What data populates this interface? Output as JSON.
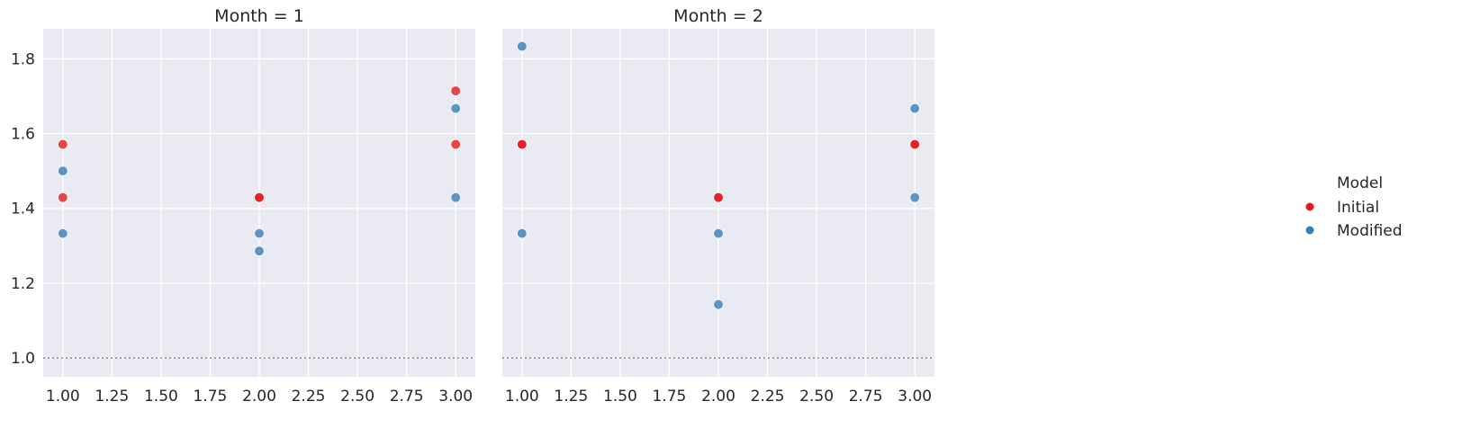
{
  "chart_data": {
    "type": "scatter",
    "colors": {
      "Initial": "#e41a1c",
      "Modified": "#377eb8"
    },
    "axes_background": "#eaeaf2",
    "grid": true,
    "sharey": true,
    "xlim": [
      0.9,
      3.1
    ],
    "ylim": [
      0.95,
      1.88
    ],
    "xticks": [
      "1.00",
      "1.25",
      "1.50",
      "1.75",
      "2.00",
      "2.25",
      "2.50",
      "2.75",
      "3.00"
    ],
    "yticks": [
      "1.0",
      "1.2",
      "1.4",
      "1.6",
      "1.8"
    ],
    "reference_line_y": 1.0,
    "legend": {
      "title": "Model",
      "placement": "right",
      "entries": [
        "Initial",
        "Modified"
      ]
    },
    "panels": [
      {
        "title": "Month = 1",
        "points": [
          {
            "x": 1,
            "y": 1.571,
            "series": "Initial"
          },
          {
            "x": 1,
            "y": 1.429,
            "series": "Initial"
          },
          {
            "x": 1,
            "y": 1.5,
            "series": "Modified"
          },
          {
            "x": 1,
            "y": 1.333,
            "series": "Modified"
          },
          {
            "x": 2,
            "y": 1.429,
            "series": "Initial"
          },
          {
            "x": 2,
            "y": 1.429,
            "series": "Initial"
          },
          {
            "x": 2,
            "y": 1.333,
            "series": "Modified"
          },
          {
            "x": 2,
            "y": 1.286,
            "series": "Modified"
          },
          {
            "x": 3,
            "y": 1.714,
            "series": "Initial"
          },
          {
            "x": 3,
            "y": 1.571,
            "series": "Initial"
          },
          {
            "x": 3,
            "y": 1.667,
            "series": "Modified"
          },
          {
            "x": 3,
            "y": 1.429,
            "series": "Modified"
          }
        ]
      },
      {
        "title": "Month = 2",
        "points": [
          {
            "x": 1,
            "y": 1.571,
            "series": "Initial"
          },
          {
            "x": 1,
            "y": 1.571,
            "series": "Initial"
          },
          {
            "x": 1,
            "y": 1.833,
            "series": "Modified"
          },
          {
            "x": 1,
            "y": 1.333,
            "series": "Modified"
          },
          {
            "x": 2,
            "y": 1.429,
            "series": "Initial"
          },
          {
            "x": 2,
            "y": 1.429,
            "series": "Initial"
          },
          {
            "x": 2,
            "y": 1.333,
            "series": "Modified"
          },
          {
            "x": 2,
            "y": 1.143,
            "series": "Modified"
          },
          {
            "x": 3,
            "y": 1.571,
            "series": "Initial"
          },
          {
            "x": 3,
            "y": 1.571,
            "series": "Initial"
          },
          {
            "x": 3,
            "y": 1.667,
            "series": "Modified"
          },
          {
            "x": 3,
            "y": 1.429,
            "series": "Modified"
          }
        ]
      }
    ]
  }
}
